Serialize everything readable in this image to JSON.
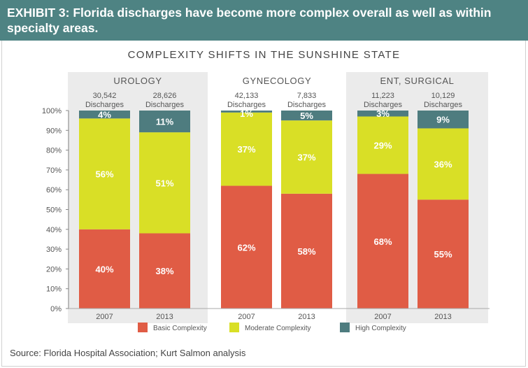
{
  "header": {
    "title": "EXHIBIT 3: Florida discharges have become more complex overall as well as within specialty areas."
  },
  "source": "Source: Florida Hospital Association; Kurt Salmon analysis",
  "colors": {
    "header_bg": "#4e8383",
    "basic": "#e05c45",
    "moderate": "#d9df26",
    "high": "#4e7c7f",
    "panel_bg": "#ebebeb"
  },
  "chart_data": {
    "type": "bar",
    "stacked": true,
    "title": "COMPLEXITY SHIFTS IN THE SUNSHINE STATE",
    "ylim": [
      0,
      100
    ],
    "y_ticks": [
      "0%",
      "10%",
      "20%",
      "30%",
      "40%",
      "50%",
      "60%",
      "70%",
      "80%",
      "90%",
      "100%"
    ],
    "legend": [
      "Basic Complexity",
      "Moderate Complexity",
      "High Complexity"
    ],
    "legend_position": "bottom",
    "groups": [
      {
        "name": "UROLOGY",
        "shaded": true,
        "bars": [
          {
            "year": "2007",
            "discharges": "30,542",
            "discharges_label": "Discharges",
            "basic": 40,
            "moderate": 56,
            "high": 4,
            "labels": [
              "40%",
              "56%",
              "4%"
            ]
          },
          {
            "year": "2013",
            "discharges": "28,626",
            "discharges_label": "Discharges",
            "basic": 38,
            "moderate": 51,
            "high": 11,
            "labels": [
              "38%",
              "51%",
              "11%"
            ]
          }
        ]
      },
      {
        "name": "GYNECOLOGY",
        "shaded": false,
        "bars": [
          {
            "year": "2007",
            "discharges": "42,133",
            "discharges_label": "Discharges",
            "basic": 62,
            "moderate": 37,
            "high": 1,
            "labels": [
              "62%",
              "37%",
              "1%"
            ]
          },
          {
            "year": "2013",
            "discharges": "7,833",
            "discharges_label": "Discharges",
            "basic": 58,
            "moderate": 37,
            "high": 5,
            "labels": [
              "58%",
              "37%",
              "5%"
            ]
          }
        ]
      },
      {
        "name": "ENT, SURGICAL",
        "shaded": true,
        "bars": [
          {
            "year": "2007",
            "discharges": "11,223",
            "discharges_label": "Discharges",
            "basic": 68,
            "moderate": 29,
            "high": 3,
            "labels": [
              "68%",
              "29%",
              "3%"
            ]
          },
          {
            "year": "2013",
            "discharges": "10,129",
            "discharges_label": "Discharges",
            "basic": 55,
            "moderate": 36,
            "high": 9,
            "labels": [
              "55%",
              "36%",
              "9%"
            ]
          }
        ]
      }
    ]
  }
}
